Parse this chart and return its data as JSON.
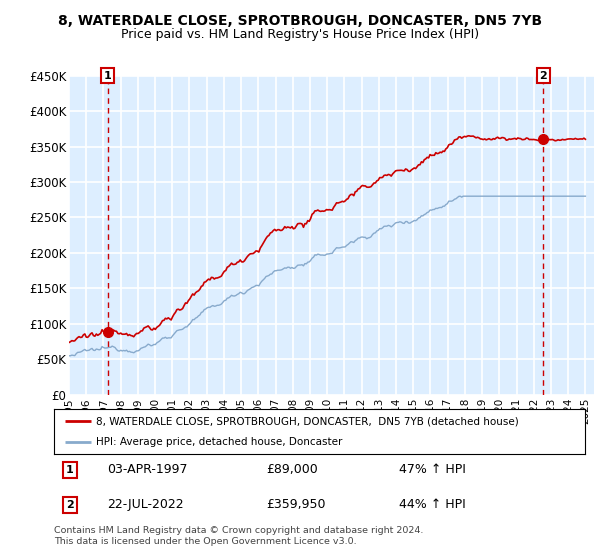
{
  "title": "8, WATERDALE CLOSE, SPROTBROUGH, DONCASTER, DN5 7YB",
  "subtitle": "Price paid vs. HM Land Registry's House Price Index (HPI)",
  "ylabel_ticks": [
    "£0",
    "£50K",
    "£100K",
    "£150K",
    "£200K",
    "£250K",
    "£300K",
    "£350K",
    "£400K",
    "£450K"
  ],
  "ytick_values": [
    0,
    50000,
    100000,
    150000,
    200000,
    250000,
    300000,
    350000,
    400000,
    450000
  ],
  "ylim": [
    0,
    450000
  ],
  "xlim_start": 1995.0,
  "xlim_end": 2025.5,
  "point1_x": 1997.25,
  "point1_y": 89000,
  "point1_label": "1",
  "point1_date": "03-APR-1997",
  "point1_price": "£89,000",
  "point1_hpi": "47% ↑ HPI",
  "point2_x": 2022.55,
  "point2_y": 359950,
  "point2_label": "2",
  "point2_date": "22-JUL-2022",
  "point2_price": "£359,950",
  "point2_hpi": "44% ↑ HPI",
  "legend_line1": "8, WATERDALE CLOSE, SPROTBROUGH, DONCASTER,  DN5 7YB (detached house)",
  "legend_line2": "HPI: Average price, detached house, Doncaster",
  "footnote": "Contains HM Land Registry data © Crown copyright and database right 2024.\nThis data is licensed under the Open Government Licence v3.0.",
  "red_line_color": "#cc0000",
  "blue_line_color": "#88aacc",
  "bg_color": "#ddeeff",
  "grid_color": "#ffffff",
  "title_fontsize": 10,
  "subtitle_fontsize": 9
}
